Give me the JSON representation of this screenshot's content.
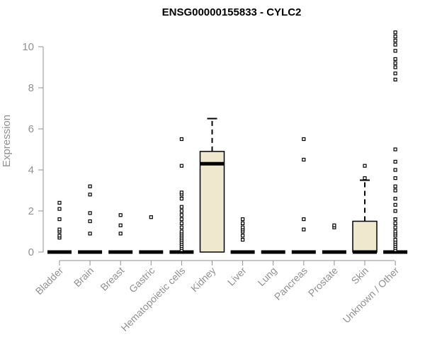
{
  "chart_data": {
    "type": "box",
    "title": "ENSG00000155833 - CYLC2",
    "xlabel": "",
    "ylabel": "Expression",
    "ylim": [
      0,
      10.8
    ],
    "yticks": [
      0,
      2,
      4,
      6,
      8,
      10
    ],
    "grid": false,
    "legend": "none",
    "box_fill": "#efe8cf",
    "box_stroke": "#000000",
    "categories": [
      "Bladder",
      "Brain",
      "Breast",
      "Gastric",
      "Hematopoietic cells",
      "Kidney",
      "Liver",
      "Lung",
      "Pancreas",
      "Prostate",
      "Skin",
      "Unknown / Other"
    ],
    "boxes": [
      {
        "q1": 0,
        "median": 0,
        "q3": 0,
        "whisker_low": 0,
        "whisker_high": 0,
        "outliers": [
          0.7,
          0.8,
          1.0,
          1.1,
          1.6,
          2.1,
          2.4
        ]
      },
      {
        "q1": 0,
        "median": 0,
        "q3": 0,
        "whisker_low": 0,
        "whisker_high": 0,
        "outliers": [
          0.9,
          1.5,
          1.9,
          2.8,
          3.2
        ]
      },
      {
        "q1": 0,
        "median": 0,
        "q3": 0,
        "whisker_low": 0,
        "whisker_high": 0,
        "outliers": [
          0.9,
          1.3,
          1.8
        ]
      },
      {
        "q1": 0,
        "median": 0,
        "q3": 0,
        "whisker_low": 0,
        "whisker_high": 0,
        "outliers": [
          1.7
        ]
      },
      {
        "q1": 0,
        "median": 0,
        "q3": 0,
        "whisker_low": 0,
        "whisker_high": 0,
        "outliers": [
          0.1,
          0.2,
          0.3,
          0.4,
          0.5,
          0.6,
          0.7,
          0.8,
          0.9,
          1.0,
          1.2,
          1.4,
          1.6,
          1.8,
          2.0,
          2.2,
          2.6,
          2.8,
          2.9,
          4.2,
          5.5
        ]
      },
      {
        "q1": 0,
        "median": 4.3,
        "q3": 4.9,
        "whisker_low": 0,
        "whisker_high": 6.5,
        "outliers": []
      },
      {
        "q1": 0,
        "median": 0,
        "q3": 0,
        "whisker_low": 0,
        "whisker_high": 0,
        "outliers": [
          0.6,
          0.8,
          1.0,
          1.1,
          1.2,
          1.4,
          1.6
        ]
      },
      {
        "q1": 0,
        "median": 0,
        "q3": 0,
        "whisker_low": 0,
        "whisker_high": 0,
        "outliers": []
      },
      {
        "q1": 0,
        "median": 0,
        "q3": 0,
        "whisker_low": 0,
        "whisker_high": 0,
        "outliers": [
          1.1,
          1.6,
          4.5,
          5.5
        ]
      },
      {
        "q1": 0,
        "median": 0,
        "q3": 0,
        "whisker_low": 0,
        "whisker_high": 0,
        "outliers": [
          1.2,
          1.3
        ]
      },
      {
        "q1": 0,
        "median": 0,
        "q3": 1.5,
        "whisker_low": 0,
        "whisker_high": 3.5,
        "outliers": [
          3.6,
          4.2
        ]
      },
      {
        "q1": 0,
        "median": 0,
        "q3": 0,
        "whisker_low": 0,
        "whisker_high": 0,
        "outliers": [
          0.1,
          0.2,
          0.3,
          0.4,
          0.5,
          0.6,
          0.8,
          0.9,
          1.0,
          1.2,
          1.4,
          1.6,
          2.0,
          2.3,
          2.6,
          3.0,
          3.2,
          3.6,
          4.0,
          4.4,
          5.0,
          8.4,
          8.7,
          9.0,
          9.2,
          9.4,
          9.8,
          10.1,
          10.3,
          10.5,
          10.7
        ]
      }
    ]
  }
}
